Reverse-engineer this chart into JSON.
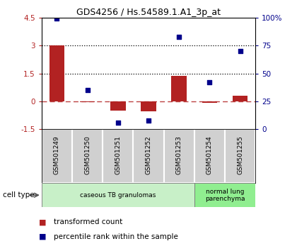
{
  "title": "GDS4256 / Hs.54589.1.A1_3p_at",
  "samples": [
    "GSM501249",
    "GSM501250",
    "GSM501251",
    "GSM501252",
    "GSM501253",
    "GSM501254",
    "GSM501255"
  ],
  "transformed_count": [
    3.0,
    -0.05,
    -0.5,
    -0.55,
    1.35,
    -0.08,
    0.3
  ],
  "percentile_rank": [
    99.0,
    35.0,
    6.0,
    8.0,
    83.0,
    42.0,
    70.0
  ],
  "ylim_left": [
    -1.5,
    4.5
  ],
  "ylim_right": [
    0,
    100
  ],
  "yticks_left": [
    -1.5,
    0,
    1.5,
    3.0,
    4.5
  ],
  "yticks_right": [
    0,
    25,
    50,
    75,
    100
  ],
  "ytick_labels_left": [
    "-1.5",
    "0",
    "1.5",
    "3",
    "4.5"
  ],
  "ytick_labels_right": [
    "0",
    "25",
    "50",
    "75",
    "100%"
  ],
  "hlines": [
    3.0,
    1.5
  ],
  "dashed_line": 0.0,
  "bar_color": "#b22222",
  "dot_color": "#00008b",
  "cell_type_groups": [
    {
      "label": "caseous TB granulomas",
      "start": 0,
      "end": 4,
      "color": "#c8f0c8"
    },
    {
      "label": "normal lung\nparenchyma",
      "start": 5,
      "end": 6,
      "color": "#90ee90"
    }
  ],
  "legend_items": [
    {
      "color": "#b22222",
      "label": "transformed count"
    },
    {
      "color": "#00008b",
      "label": "percentile rank within the sample"
    }
  ],
  "cell_type_label": "cell type",
  "bg_color": "#ffffff",
  "sample_panel_bg": "#d0d0d0"
}
